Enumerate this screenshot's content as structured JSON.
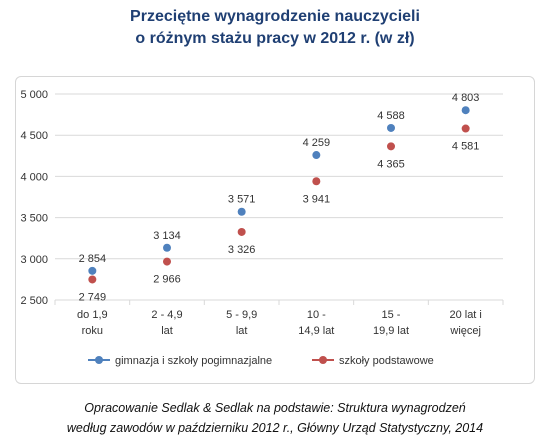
{
  "title_line1": "Przeciętne wynagrodzenie nauczycieli",
  "title_line2": "o różnym stażu pracy w 2012 r. (w zł)",
  "source_line1": "Opracowanie Sedlak & Sedlak na podstawie: Struktura wynagrodzeń",
  "source_line2": "według zawodów w październiku 2012 r., Główny Urząd Statystyczny, 2014",
  "chart_data": {
    "type": "scatter",
    "categories": [
      [
        "do 1,9",
        "roku"
      ],
      [
        "2 - 4,9",
        "lat"
      ],
      [
        "5 - 9,9",
        "lat"
      ],
      [
        "10 -",
        "14,9 lat"
      ],
      [
        "15 -",
        "19,9 lat"
      ],
      [
        "20 lat i",
        "więcej"
      ]
    ],
    "ylim": [
      2500,
      5000
    ],
    "yticks": [
      2500,
      3000,
      3500,
      4000,
      4500,
      5000
    ],
    "ytick_labels": [
      "2 500",
      "3 000",
      "3 500",
      "4 000",
      "4 500",
      "5 000"
    ],
    "grid": true,
    "legend_position": "bottom",
    "series": [
      {
        "name": "gimnazja i szkoły pogimnazjalne",
        "color": "#4f81bd",
        "values": [
          2854,
          3134,
          3571,
          4259,
          4588,
          4803
        ],
        "labels": [
          "2 854",
          "3 134",
          "3 571",
          "4 259",
          "4 588",
          "4 803"
        ]
      },
      {
        "name": "szkoły podstawowe",
        "color": "#c0504d",
        "values": [
          2749,
          2966,
          3326,
          3941,
          4365,
          4581
        ],
        "labels": [
          "2 749",
          "2 966",
          "3 326",
          "3 941",
          "4 365",
          "4 581"
        ]
      }
    ]
  }
}
